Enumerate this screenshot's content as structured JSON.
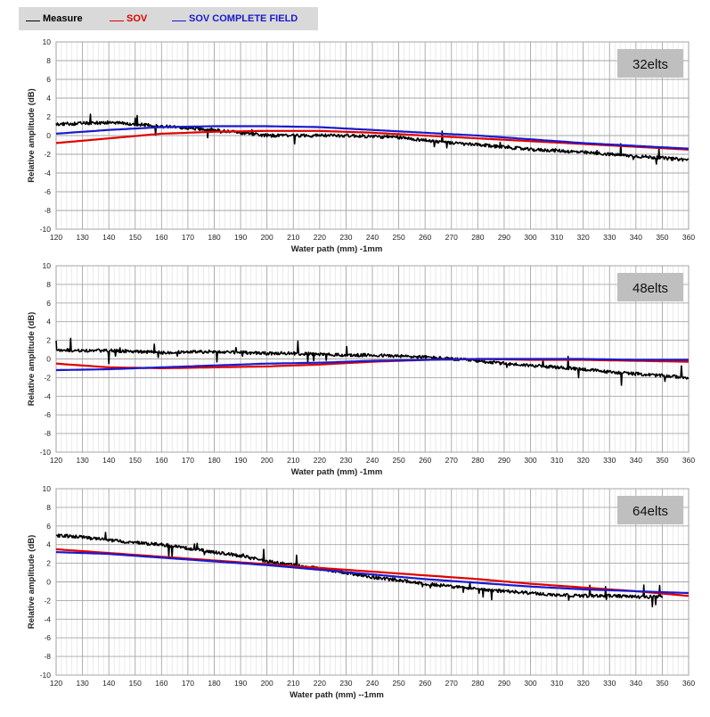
{
  "legend": {
    "items": [
      {
        "label": "Measure",
        "color": "#000000"
      },
      {
        "label": "SOV",
        "color": "#e00000"
      },
      {
        "label": "SOV COMPLETE FIELD",
        "color": "#1a1acc"
      }
    ]
  },
  "chart_data": [
    {
      "type": "line",
      "annotation": "32elts",
      "xlabel": "Water path (mm) -1mm",
      "ylabel": "Relative amplitude (dB)",
      "xlim": [
        120,
        360
      ],
      "ylim": [
        -10,
        10
      ],
      "xticks": [
        120,
        130,
        140,
        150,
        160,
        170,
        180,
        190,
        200,
        210,
        220,
        230,
        240,
        250,
        260,
        270,
        280,
        290,
        300,
        310,
        320,
        330,
        340,
        350,
        360
      ],
      "yticks": [
        10,
        8,
        6,
        4,
        2,
        0,
        -2,
        -4,
        -6,
        -8,
        -10
      ],
      "grid": true,
      "series": [
        {
          "name": "Measure",
          "color": "#000000",
          "x": [
            120,
            130,
            140,
            150,
            160,
            170,
            180,
            190,
            200,
            210,
            220,
            230,
            240,
            250,
            260,
            270,
            280,
            290,
            300,
            310,
            320,
            330,
            340,
            350,
            360
          ],
          "y": [
            1.2,
            1.3,
            1.4,
            1.2,
            1.0,
            0.8,
            0.6,
            0.3,
            0.0,
            0.0,
            0.0,
            0.0,
            -0.1,
            -0.2,
            -0.5,
            -0.8,
            -1.0,
            -1.2,
            -1.5,
            -1.6,
            -1.8,
            -2.0,
            -2.2,
            -2.4,
            -2.6
          ]
        },
        {
          "name": "SOV",
          "color": "#e00000",
          "x": [
            120,
            140,
            160,
            180,
            200,
            220,
            240,
            260,
            280,
            300,
            320,
            340,
            360
          ],
          "y": [
            -0.8,
            -0.3,
            0.2,
            0.4,
            0.5,
            0.5,
            0.3,
            0.0,
            -0.3,
            -0.6,
            -0.9,
            -1.2,
            -1.5
          ]
        },
        {
          "name": "SOV COMPLETE FIELD",
          "color": "#1a1acc",
          "x": [
            120,
            140,
            160,
            180,
            200,
            220,
            240,
            260,
            280,
            300,
            320,
            340,
            360
          ],
          "y": [
            0.2,
            0.6,
            0.9,
            1.0,
            1.0,
            0.9,
            0.6,
            0.3,
            0.0,
            -0.4,
            -0.8,
            -1.1,
            -1.4
          ]
        }
      ]
    },
    {
      "type": "line",
      "annotation": "48elts",
      "xlabel": "Water path (mm) -1mm",
      "ylabel": "Relative amplitude (dB)",
      "xlim": [
        120,
        360
      ],
      "ylim": [
        -10,
        10
      ],
      "xticks": [
        120,
        130,
        140,
        150,
        160,
        170,
        180,
        190,
        200,
        210,
        220,
        230,
        240,
        250,
        260,
        270,
        280,
        290,
        300,
        310,
        320,
        330,
        340,
        350,
        360
      ],
      "yticks": [
        10,
        8,
        6,
        4,
        2,
        0,
        -2,
        -4,
        -6,
        -8,
        -10
      ],
      "grid": true,
      "series": [
        {
          "name": "Measure",
          "color": "#000000",
          "x": [
            120,
            130,
            140,
            150,
            160,
            170,
            180,
            190,
            200,
            210,
            220,
            230,
            240,
            250,
            260,
            270,
            280,
            290,
            300,
            310,
            320,
            330,
            340,
            350,
            360
          ],
          "y": [
            1.0,
            0.9,
            0.9,
            0.8,
            0.7,
            0.7,
            0.8,
            0.7,
            0.6,
            0.6,
            0.5,
            0.4,
            0.4,
            0.3,
            0.2,
            0.0,
            -0.2,
            -0.5,
            -0.7,
            -0.9,
            -1.1,
            -1.4,
            -1.6,
            -1.8,
            -2.0
          ]
        },
        {
          "name": "SOV",
          "color": "#e00000",
          "x": [
            120,
            140,
            160,
            180,
            200,
            220,
            240,
            260,
            280,
            300,
            320,
            340,
            360
          ],
          "y": [
            -0.5,
            -0.9,
            -1.0,
            -0.9,
            -0.8,
            -0.6,
            -0.3,
            -0.1,
            0.0,
            -0.1,
            -0.1,
            -0.2,
            -0.3
          ]
        },
        {
          "name": "SOV COMPLETE FIELD",
          "color": "#1a1acc",
          "x": [
            120,
            140,
            160,
            180,
            200,
            220,
            240,
            260,
            280,
            300,
            320,
            340,
            360
          ],
          "y": [
            -1.2,
            -1.1,
            -0.9,
            -0.7,
            -0.5,
            -0.4,
            -0.2,
            -0.1,
            0.0,
            0.0,
            0.0,
            -0.1,
            -0.1
          ]
        }
      ]
    },
    {
      "type": "line",
      "annotation": "64elts",
      "xlabel": "Water path (mm) --1mm",
      "ylabel": "Relative amplitude (dB)",
      "xlim": [
        120,
        360
      ],
      "ylim": [
        -10,
        10
      ],
      "xticks": [
        120,
        130,
        140,
        150,
        160,
        170,
        180,
        190,
        200,
        210,
        220,
        230,
        240,
        250,
        260,
        270,
        280,
        290,
        300,
        310,
        320,
        330,
        340,
        350,
        360
      ],
      "yticks": [
        10,
        8,
        6,
        4,
        2,
        0,
        -2,
        -4,
        -6,
        -8,
        -10
      ],
      "grid": true,
      "series": [
        {
          "name": "Measure",
          "color": "#000000",
          "x": [
            120,
            130,
            140,
            150,
            160,
            170,
            180,
            190,
            200,
            210,
            220,
            230,
            240,
            250,
            260,
            270,
            280,
            290,
            300,
            310,
            320,
            330,
            340,
            350
          ],
          "y": [
            5.0,
            4.8,
            4.5,
            4.2,
            4.0,
            3.6,
            3.2,
            2.8,
            2.2,
            1.8,
            1.4,
            1.0,
            0.5,
            0.2,
            -0.2,
            -0.5,
            -0.8,
            -1.0,
            -1.2,
            -1.4,
            -1.5,
            -1.5,
            -1.6,
            -1.6
          ]
        },
        {
          "name": "SOV",
          "color": "#e00000",
          "x": [
            120,
            140,
            160,
            180,
            200,
            220,
            240,
            260,
            280,
            300,
            320,
            340,
            360
          ],
          "y": [
            3.5,
            3.1,
            2.7,
            2.3,
            1.9,
            1.5,
            1.1,
            0.7,
            0.3,
            -0.2,
            -0.6,
            -1.0,
            -1.5
          ]
        },
        {
          "name": "SOV COMPLETE FIELD",
          "color": "#1a1acc",
          "x": [
            120,
            140,
            160,
            180,
            200,
            220,
            240,
            260,
            280,
            300,
            320,
            340,
            360
          ],
          "y": [
            3.2,
            3.0,
            2.6,
            2.2,
            1.8,
            1.3,
            0.8,
            0.3,
            -0.1,
            -0.5,
            -0.8,
            -1.0,
            -1.2
          ]
        }
      ]
    }
  ]
}
